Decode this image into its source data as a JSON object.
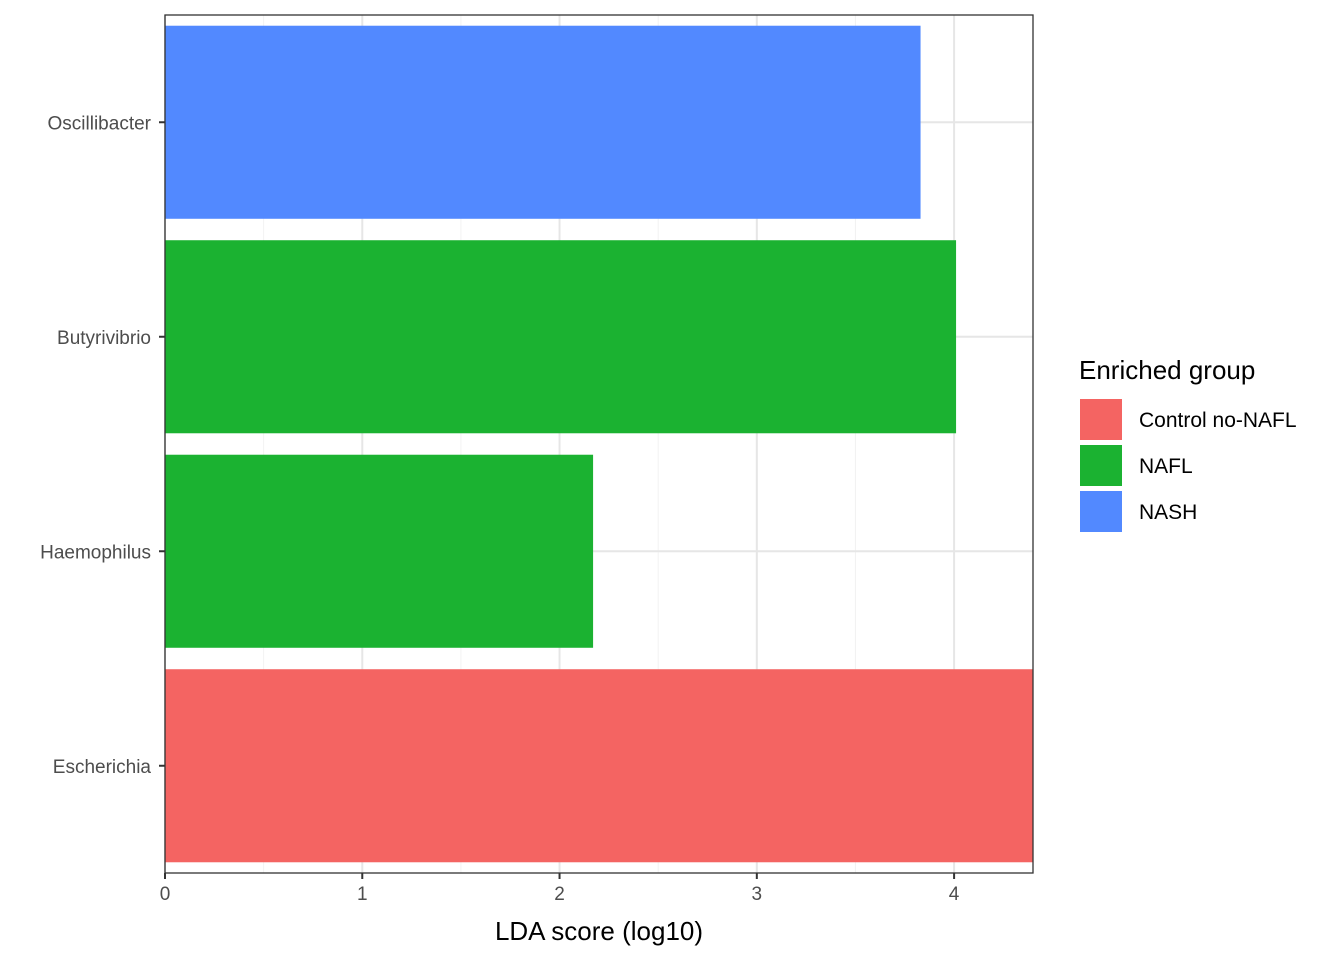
{
  "chart_data": {
    "type": "bar",
    "orientation": "horizontal",
    "title": "",
    "xlabel": "LDA score (log10)",
    "ylabel": "",
    "xlim": [
      0,
      4.4
    ],
    "xticks": [
      0,
      1,
      2,
      3,
      4
    ],
    "grid": true,
    "categories": [
      "Oscillibacter",
      "Butyrivibrio",
      "Haemophilus",
      "Escherichia"
    ],
    "values": [
      3.83,
      4.01,
      2.17,
      4.4
    ],
    "groups": [
      "NASH",
      "NAFL",
      "NAFL",
      "Control no-NAFL"
    ],
    "legend": {
      "title": "Enriched group",
      "position": "right",
      "entries": [
        {
          "name": "Control no-NAFL",
          "color": "#F46462"
        },
        {
          "name": "NAFL",
          "color": "#1BB231"
        },
        {
          "name": "NASH",
          "color": "#5289FF"
        }
      ]
    }
  }
}
